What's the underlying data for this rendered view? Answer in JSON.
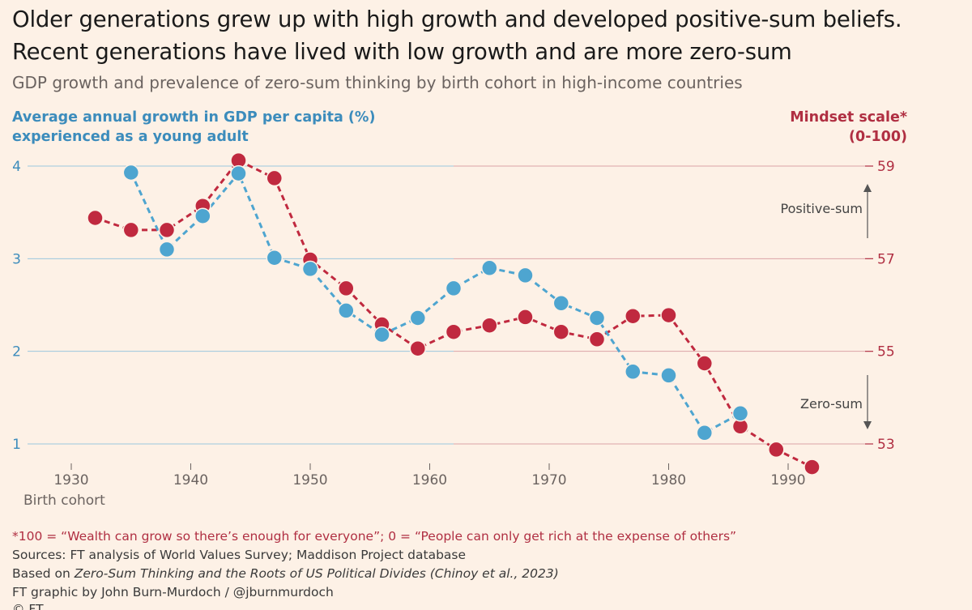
{
  "header": {
    "title": "Older generations grew up with high growth and developed positive-sum beliefs. Recent generations have lived with low growth and are more zero-sum",
    "subtitle": "GDP growth and prevalence of zero-sum thinking by birth cohort in high-income countries"
  },
  "axes": {
    "left_label_1": "Average annual growth in GDP per capita (%)",
    "left_label_2": "experienced as a young adult",
    "right_label_1": "Mindset scale*",
    "right_label_2": "(0-100)",
    "x_label": "Birth cohort"
  },
  "annotations": {
    "positive": "Positive-sum",
    "zero": "Zero-sum"
  },
  "footer": {
    "note": "*100 = “Wealth can grow so there’s enough for everyone”; 0 = “People can only get rich at the expense of others”",
    "sources": "Sources: FT analysis of World Values Survey; Maddison Project database",
    "based_prefix": "Based on ",
    "based_title": "Zero-Sum Thinking and the Roots of US Political Divides (Chinoy et al., 2023)",
    "credit": "FT graphic by John Burn-Murdoch / @jburnmurdoch",
    "credit_ft": "© FT"
  },
  "colors": {
    "blue": "#4ea5d0",
    "red": "#c0293f",
    "blue_text": "#3c8cbc",
    "red_text": "#b02f42",
    "background": "#fdf1e6"
  },
  "chart_data": {
    "type": "line",
    "title": "Older generations grew up with high growth and developed positive-sum beliefs. Recent generations have lived with low growth and are more zero-sum",
    "xlabel": "Birth cohort",
    "ylabel_left": "Average annual growth in GDP per capita (%) experienced as a young adult",
    "ylabel_right": "Mindset scale* (0-100)",
    "xlim": [
      1927,
      1993
    ],
    "ylim_left": [
      1,
      4
    ],
    "ylim_right": [
      53,
      59
    ],
    "x_ticks": [
      1930,
      1940,
      1950,
      1960,
      1970,
      1980,
      1990
    ],
    "y_ticks_left": [
      1,
      2,
      3,
      4
    ],
    "y_ticks_right": [
      53,
      55,
      57,
      59
    ],
    "series": [
      {
        "name": "GDP growth",
        "axis": "left",
        "color": "#4ea5d0",
        "x": [
          1935,
          1938,
          1941,
          1944,
          1947,
          1950,
          1953,
          1956,
          1959,
          1962,
          1965,
          1968,
          1971,
          1974,
          1977,
          1980,
          1983,
          1986
        ],
        "values": [
          3.93,
          3.1,
          3.46,
          3.92,
          3.01,
          2.89,
          2.44,
          2.18,
          2.36,
          2.68,
          2.9,
          2.82,
          2.52,
          2.36,
          1.78,
          1.74,
          1.12,
          1.33
        ]
      },
      {
        "name": "Mindset scale",
        "axis": "right",
        "color": "#c0293f",
        "x": [
          1932,
          1935,
          1938,
          1941,
          1944,
          1947,
          1950,
          1953,
          1956,
          1959,
          1962,
          1965,
          1968,
          1971,
          1974,
          1977,
          1980,
          1983,
          1986,
          1989,
          1992
        ],
        "values": [
          57.88,
          57.62,
          57.62,
          58.14,
          59.12,
          58.74,
          56.98,
          56.36,
          55.58,
          55.06,
          55.42,
          55.56,
          55.74,
          55.42,
          55.26,
          55.76,
          55.78,
          54.74,
          53.38,
          52.88,
          52.5
        ]
      }
    ]
  }
}
